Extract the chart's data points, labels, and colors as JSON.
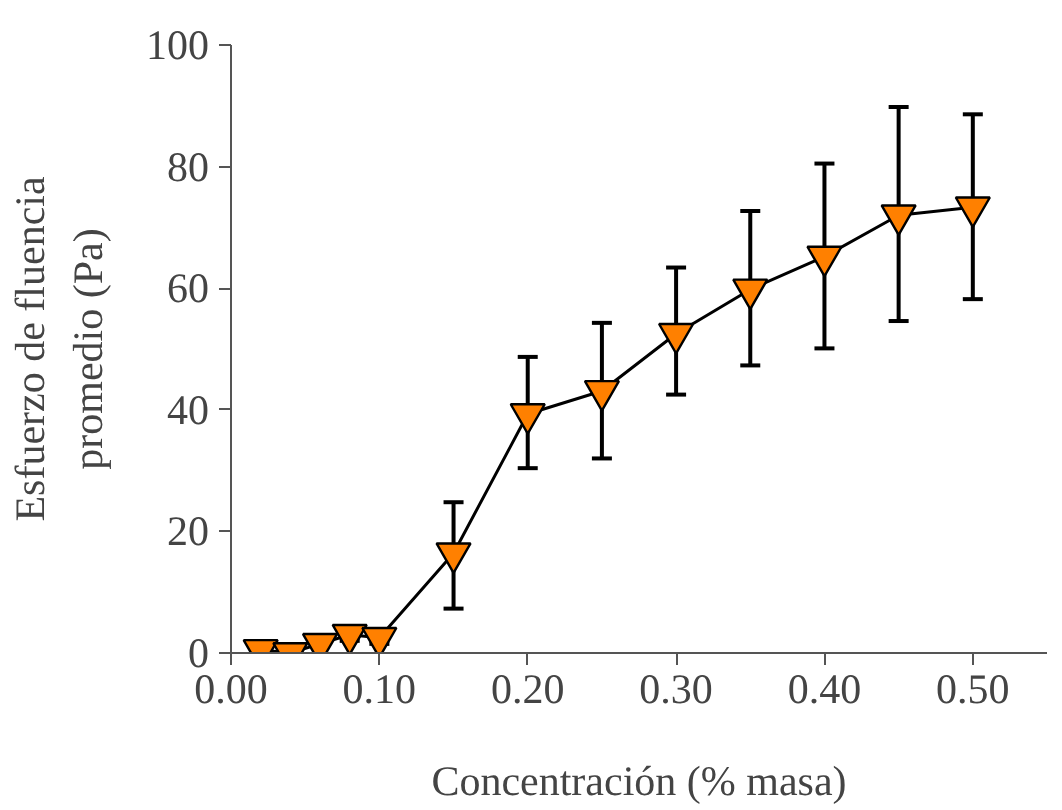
{
  "chart_data": {
    "type": "line",
    "xlabel": "Concentración (% masa)",
    "ylabel": "Esfuerzo de fluencia promedio (Pa)",
    "x": [
      0.02,
      0.04,
      0.06,
      0.08,
      0.1,
      0.15,
      0.2,
      0.25,
      0.3,
      0.35,
      0.4,
      0.45,
      0.5
    ],
    "series": [
      {
        "color": "#ff8000",
        "values": [
          0.5,
          0,
          1.5,
          3,
          2.5,
          16.4,
          39.3,
          43.1,
          52.5,
          59.8,
          65.2,
          72.0,
          73.3
        ],
        "errors": [
          null,
          null,
          null,
          1,
          1,
          [
            7.3,
            24.8
          ],
          [
            30.4,
            48.7
          ],
          [
            32.0,
            54.3
          ],
          [
            42.5,
            63.4
          ],
          [
            47.3,
            72.7
          ],
          [
            50.1,
            80.5
          ],
          [
            54.6,
            89.8
          ],
          [
            58.2,
            88.6
          ]
        ]
      }
    ],
    "xlim": [
      0,
      0.55
    ],
    "ylim": [
      0,
      100
    ],
    "xticks": [
      {
        "value": 0,
        "label": "0.00"
      },
      {
        "value": 0.1,
        "label": "0.10"
      },
      {
        "value": 0.2,
        "label": "0.20"
      },
      {
        "value": 0.3,
        "label": "0.30"
      },
      {
        "value": 0.4,
        "label": "0.40"
      },
      {
        "value": 0.5,
        "label": "0.50"
      }
    ],
    "yticks": [
      0,
      20,
      40,
      60,
      80,
      100
    ],
    "grid": false,
    "marker": "triangle_down",
    "line_style": "solid"
  }
}
